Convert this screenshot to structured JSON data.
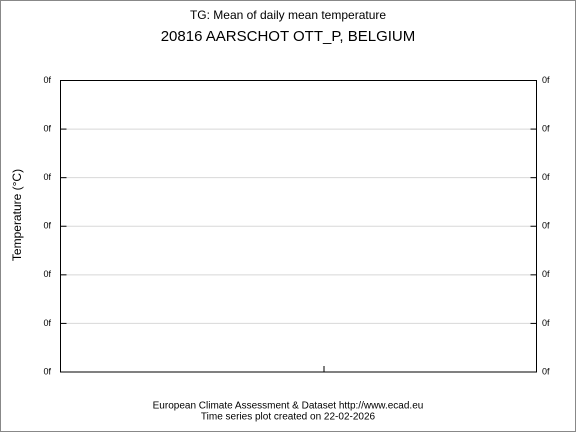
{
  "chart_data": {
    "type": "line",
    "title": "TG: Mean of daily mean temperature",
    "subtitle": "20816 AARSCHOT OTT_P, BELGIUM",
    "y_label": "Temperature (°C)",
    "y_tick_labels": [
      "0f",
      "0f",
      "0f",
      "0f",
      "0f",
      "0f",
      "0f"
    ],
    "y2_tick_labels": [
      "0f",
      "0f",
      "0f",
      "0f",
      "0f",
      "0f",
      "0f"
    ],
    "footer": [
      "European Climate Assessment & Dataset  http://www.ecad.eu",
      "Time series plot created on 22-02-2026"
    ],
    "grid": true
  }
}
